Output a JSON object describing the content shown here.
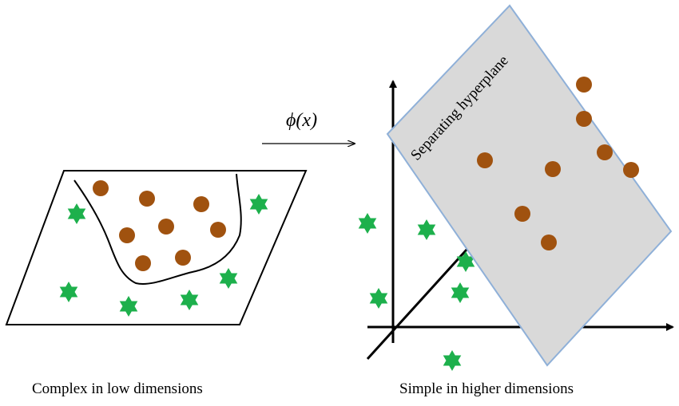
{
  "mapping": {
    "label": "ϕ(x)"
  },
  "left_panel": {
    "caption": "Complex in low dimensions"
  },
  "right_panel": {
    "caption": "Simple in higher dimensions",
    "plane_label": "Separating hyperplane"
  },
  "colors": {
    "circle": "#a0520f",
    "star": "#1db04c",
    "plane_fill": "#d9d9d9",
    "plane_edge": "#8fb0d8"
  },
  "classes": [
    {
      "name": "circle",
      "shape": "circle-icon"
    },
    {
      "name": "star",
      "shape": "star-icon"
    }
  ]
}
